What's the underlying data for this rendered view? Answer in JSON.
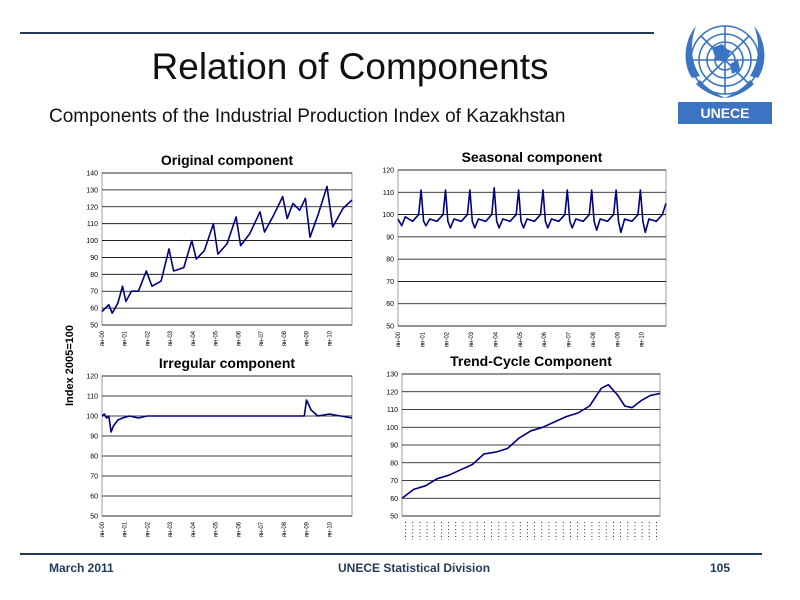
{
  "slide": {
    "title": "Relation of Components",
    "subtitle": "Components of the Industrial Production Index of Kazakhstan",
    "y_axis_label": "Index 2005=100",
    "logo_text": "UNECE",
    "footer": {
      "date": "March 2011",
      "org": "UNECE Statistical Division",
      "page": "105"
    }
  },
  "colors": {
    "line": "#000080",
    "rule": "#1f3a5a",
    "logo": "#3a74c2"
  },
  "chart_data": [
    {
      "type": "line",
      "title": "Original component",
      "ylim": [
        50,
        140
      ],
      "yticks": [
        50,
        60,
        70,
        80,
        90,
        100,
        110,
        120,
        130,
        140
      ],
      "xticklabels": [
        "ян-00",
        "ян-01",
        "ян-02",
        "ян-03",
        "ян-04",
        "ян-05",
        "ян-06",
        "ян-07",
        "ян-08",
        "ян-09",
        "ян-10"
      ],
      "x_range": [
        2000.0,
        2011.0
      ],
      "grid": true,
      "points": [
        [
          2000.0,
          58
        ],
        [
          2000.3,
          62
        ],
        [
          2000.45,
          57
        ],
        [
          2000.7,
          63
        ],
        [
          2000.9,
          73
        ],
        [
          2001.05,
          64
        ],
        [
          2001.3,
          70
        ],
        [
          2001.6,
          70
        ],
        [
          2001.95,
          82
        ],
        [
          2002.2,
          73
        ],
        [
          2002.6,
          76
        ],
        [
          2002.95,
          95
        ],
        [
          2003.15,
          82
        ],
        [
          2003.6,
          84
        ],
        [
          2003.95,
          100
        ],
        [
          2004.15,
          89
        ],
        [
          2004.5,
          94
        ],
        [
          2004.9,
          110
        ],
        [
          2005.1,
          92
        ],
        [
          2005.5,
          98
        ],
        [
          2005.9,
          114
        ],
        [
          2006.1,
          97
        ],
        [
          2006.5,
          104
        ],
        [
          2006.95,
          117
        ],
        [
          2007.15,
          105
        ],
        [
          2007.55,
          115
        ],
        [
          2007.95,
          126
        ],
        [
          2008.15,
          113
        ],
        [
          2008.4,
          122
        ],
        [
          2008.7,
          118
        ],
        [
          2008.95,
          125
        ],
        [
          2009.15,
          102
        ],
        [
          2009.5,
          115
        ],
        [
          2009.9,
          132
        ],
        [
          2010.15,
          108
        ],
        [
          2010.6,
          119
        ],
        [
          2011.0,
          124
        ]
      ]
    },
    {
      "type": "line",
      "title": "Seasonal component",
      "ylim": [
        50,
        120
      ],
      "yticks": [
        50,
        60,
        70,
        80,
        90,
        100,
        110,
        120
      ],
      "xticklabels": [
        "ян-00",
        "ян-01",
        "ян-02",
        "ян-03",
        "ян-04",
        "ян-05",
        "ян-06",
        "ян-07",
        "ян-08",
        "ян-09",
        "ян-10"
      ],
      "x_range": [
        2000.0,
        2011.0
      ],
      "grid": true,
      "points": [
        [
          2000.0,
          98
        ],
        [
          2000.15,
          95
        ],
        [
          2000.3,
          99
        ],
        [
          2000.6,
          97
        ],
        [
          2000.85,
          100
        ],
        [
          2000.95,
          111
        ],
        [
          2001.05,
          97
        ],
        [
          2001.15,
          95
        ],
        [
          2001.3,
          98
        ],
        [
          2001.6,
          97
        ],
        [
          2001.85,
          100
        ],
        [
          2001.95,
          111
        ],
        [
          2002.05,
          97
        ],
        [
          2002.15,
          94
        ],
        [
          2002.3,
          98
        ],
        [
          2002.6,
          97
        ],
        [
          2002.85,
          100
        ],
        [
          2002.95,
          111
        ],
        [
          2003.05,
          97
        ],
        [
          2003.15,
          94
        ],
        [
          2003.3,
          98
        ],
        [
          2003.6,
          97
        ],
        [
          2003.85,
          100
        ],
        [
          2003.95,
          112
        ],
        [
          2004.05,
          97
        ],
        [
          2004.15,
          94
        ],
        [
          2004.3,
          98
        ],
        [
          2004.6,
          97
        ],
        [
          2004.85,
          100
        ],
        [
          2004.95,
          111
        ],
        [
          2005.05,
          97
        ],
        [
          2005.15,
          94
        ],
        [
          2005.3,
          98
        ],
        [
          2005.6,
          97
        ],
        [
          2005.85,
          100
        ],
        [
          2005.95,
          111
        ],
        [
          2006.05,
          97
        ],
        [
          2006.15,
          94
        ],
        [
          2006.3,
          98
        ],
        [
          2006.6,
          97
        ],
        [
          2006.85,
          100
        ],
        [
          2006.95,
          111
        ],
        [
          2007.05,
          97
        ],
        [
          2007.15,
          94
        ],
        [
          2007.3,
          98
        ],
        [
          2007.6,
          97
        ],
        [
          2007.85,
          100
        ],
        [
          2007.95,
          111
        ],
        [
          2008.05,
          97
        ],
        [
          2008.15,
          93
        ],
        [
          2008.3,
          98
        ],
        [
          2008.6,
          97
        ],
        [
          2008.85,
          100
        ],
        [
          2008.95,
          111
        ],
        [
          2009.05,
          97
        ],
        [
          2009.15,
          92
        ],
        [
          2009.3,
          98
        ],
        [
          2009.6,
          97
        ],
        [
          2009.85,
          100
        ],
        [
          2009.95,
          111
        ],
        [
          2010.05,
          97
        ],
        [
          2010.15,
          92
        ],
        [
          2010.3,
          98
        ],
        [
          2010.6,
          97
        ],
        [
          2010.85,
          100
        ],
        [
          2011.0,
          105
        ]
      ]
    },
    {
      "type": "line",
      "title": "Irregular component",
      "ylim": [
        50,
        120
      ],
      "yticks": [
        50,
        60,
        70,
        80,
        90,
        100,
        110,
        120
      ],
      "xticklabels": [
        "ян-00",
        "ян-01",
        "ян-02",
        "ян-03",
        "ян-04",
        "ян-05",
        "ян-06",
        "ян-07",
        "ян-08",
        "ян-09",
        "ян-10"
      ],
      "x_range": [
        2000.0,
        2011.0
      ],
      "grid": true,
      "points": [
        [
          2000.0,
          100
        ],
        [
          2000.1,
          101
        ],
        [
          2000.2,
          99
        ],
        [
          2000.3,
          100
        ],
        [
          2000.4,
          92
        ],
        [
          2000.5,
          95
        ],
        [
          2000.7,
          98
        ],
        [
          2000.9,
          99
        ],
        [
          2001.2,
          100
        ],
        [
          2001.6,
          99
        ],
        [
          2002.0,
          100
        ],
        [
          2002.5,
          100
        ],
        [
          2003.0,
          100
        ],
        [
          2003.5,
          100
        ],
        [
          2004.0,
          100
        ],
        [
          2004.5,
          100
        ],
        [
          2005.0,
          100
        ],
        [
          2005.5,
          100
        ],
        [
          2006.0,
          100
        ],
        [
          2006.5,
          100
        ],
        [
          2007.0,
          100
        ],
        [
          2007.5,
          100
        ],
        [
          2008.0,
          100
        ],
        [
          2008.5,
          100
        ],
        [
          2008.9,
          100
        ],
        [
          2009.0,
          108
        ],
        [
          2009.2,
          103
        ],
        [
          2009.5,
          100
        ],
        [
          2010.0,
          101
        ],
        [
          2010.5,
          100
        ],
        [
          2011.0,
          99
        ]
      ]
    },
    {
      "type": "line",
      "title": "Trend-Cycle Component",
      "ylim": [
        50,
        130
      ],
      "yticks": [
        50,
        60,
        70,
        80,
        90,
        100,
        110,
        120,
        130
      ],
      "xticklabels": [],
      "x_range": [
        2000.0,
        2011.0
      ],
      "grid": true,
      "points": [
        [
          2000.0,
          60
        ],
        [
          2000.5,
          65
        ],
        [
          2001.0,
          67
        ],
        [
          2001.5,
          71
        ],
        [
          2002.0,
          73
        ],
        [
          2002.5,
          76
        ],
        [
          2003.0,
          79
        ],
        [
          2003.5,
          85
        ],
        [
          2004.0,
          86
        ],
        [
          2004.5,
          88
        ],
        [
          2005.0,
          94
        ],
        [
          2005.5,
          98
        ],
        [
          2006.0,
          100
        ],
        [
          2006.5,
          103
        ],
        [
          2007.0,
          106
        ],
        [
          2007.5,
          108
        ],
        [
          2008.0,
          112
        ],
        [
          2008.5,
          122
        ],
        [
          2008.8,
          124
        ],
        [
          2009.2,
          118
        ],
        [
          2009.5,
          112
        ],
        [
          2009.8,
          111
        ],
        [
          2010.2,
          115
        ],
        [
          2010.6,
          118
        ],
        [
          2011.0,
          119
        ]
      ]
    }
  ]
}
